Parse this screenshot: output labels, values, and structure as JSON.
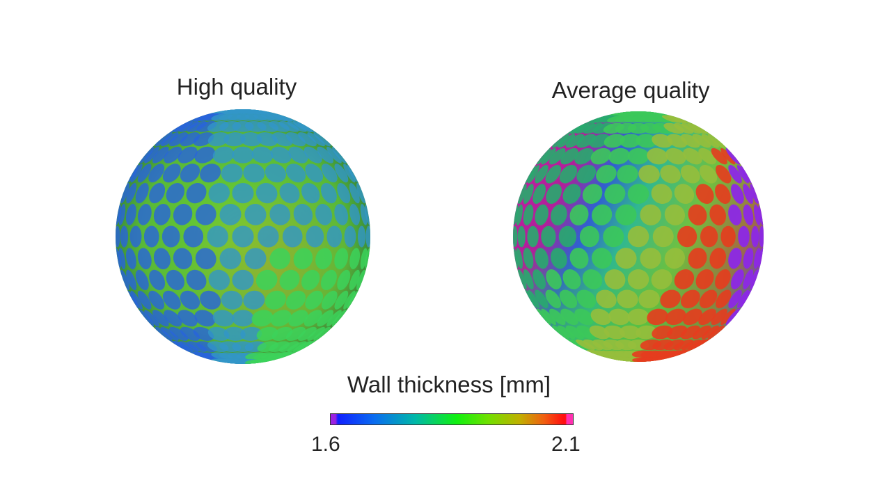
{
  "panels": [
    {
      "title": "High quality"
    },
    {
      "title": "Average quality"
    }
  ],
  "colorbar": {
    "title": "Wall thickness [mm]",
    "min_label": "1.6",
    "max_label": "2.1",
    "colors": [
      "#9a22e0",
      "#1020ff",
      "#00b8a8",
      "#10f010",
      "#c0b000",
      "#ff1010",
      "#ff30b0"
    ]
  }
}
